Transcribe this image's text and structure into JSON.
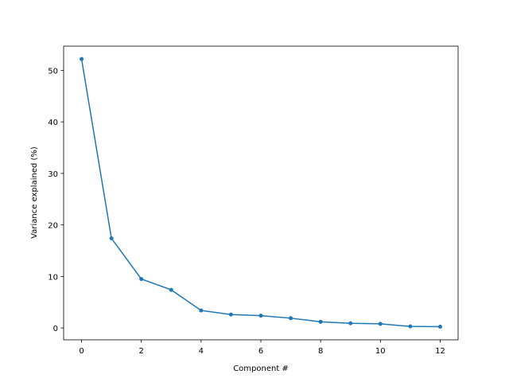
{
  "chart_data": {
    "type": "line",
    "x_label": "Component #",
    "y_label": "Variance explained (%)",
    "x": [
      0,
      1,
      2,
      3,
      4,
      5,
      6,
      7,
      8,
      9,
      10,
      11,
      12
    ],
    "series": [
      {
        "color": "#1f77b4",
        "marker": "dot",
        "values": [
          52.2,
          17.4,
          9.5,
          7.4,
          3.4,
          2.6,
          2.4,
          1.9,
          1.2,
          0.9,
          0.8,
          0.3,
          0.25
        ]
      }
    ],
    "xlim": [
      -0.6,
      12.6
    ],
    "ylim": [
      -2.3,
      54.7
    ],
    "xticks": [
      0,
      2,
      4,
      6,
      8,
      10,
      12
    ],
    "yticks": [
      0,
      10,
      20,
      30,
      40,
      50
    ],
    "grid": false
  }
}
